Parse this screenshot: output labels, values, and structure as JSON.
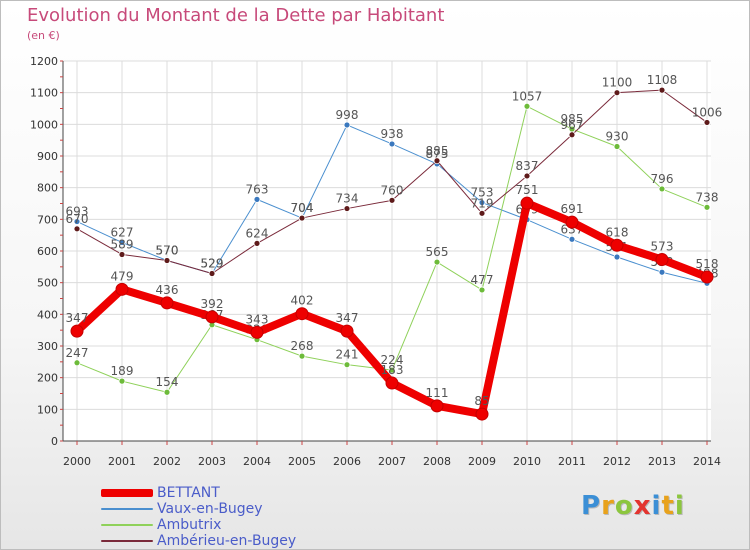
{
  "header": {
    "title": "Evolution du Montant de la Dette par Habitant",
    "subtitle": "(en €)"
  },
  "chart_data": {
    "type": "line",
    "x": [
      2000,
      2001,
      2002,
      2003,
      2004,
      2005,
      2006,
      2007,
      2008,
      2009,
      2010,
      2011,
      2012,
      2013,
      2014
    ],
    "ylim": [
      0,
      1200
    ],
    "yticks": [
      0,
      100,
      200,
      300,
      400,
      500,
      600,
      700,
      800,
      900,
      1000,
      1100,
      1200
    ],
    "grid": true,
    "legend": "bottom-left",
    "series": [
      {
        "name": "Vaux-en-Bugey",
        "color": "#4a8fcf",
        "marker": "#3a78be",
        "width": 1,
        "values": [
          693,
          627,
          570,
          529,
          763,
          704,
          998,
          938,
          875,
          753,
          699,
          637,
          581,
          533,
          498
        ],
        "labels": [
          "693",
          "627",
          "570",
          "529",
          "763",
          "704",
          "998",
          "938",
          "875",
          "753",
          "699",
          "637",
          "581",
          "533",
          "498"
        ]
      },
      {
        "name": "Ambutrix",
        "color": "#8fd15a",
        "marker": "#6dbb3a",
        "width": 1,
        "values": [
          247,
          189,
          154,
          367,
          320,
          268,
          241,
          224,
          565,
          477,
          1057,
          985,
          930,
          796,
          738
        ],
        "labels": [
          "247",
          "189",
          "154",
          "367",
          "320",
          "268",
          "241",
          "224",
          "565",
          "477",
          "1057",
          "985",
          "930",
          "796",
          "738"
        ]
      },
      {
        "name": "Ambérieu-en-Bugey",
        "color": "#7a2a3a",
        "marker": "#5e1a1a",
        "width": 1,
        "values": [
          670,
          589,
          570,
          529,
          624,
          704,
          734,
          760,
          885,
          719,
          837,
          967,
          1100,
          1108,
          1006
        ],
        "labels": [
          "670",
          "589",
          "570",
          "529",
          "624",
          "704",
          "734",
          "760",
          "885",
          "719",
          "837",
          "967",
          "1100",
          "1108",
          "1006"
        ]
      },
      {
        "name": "BETTANT",
        "color": "#ee0000",
        "marker": "#ee0000",
        "width": 8,
        "values": [
          347,
          479,
          436,
          392,
          343,
          402,
          347,
          183,
          111,
          85,
          751,
          691,
          618,
          573,
          518
        ],
        "labels": [
          "347",
          "479",
          "436",
          "392",
          "343",
          "402",
          "347",
          "183",
          "111",
          "85",
          "751",
          "691",
          "618",
          "573",
          "518"
        ]
      }
    ]
  },
  "legend": [
    {
      "label": "BETTANT",
      "color": "#ee0000",
      "thick": true
    },
    {
      "label": "Vaux-en-Bugey",
      "color": "#4a8fcf",
      "thick": false
    },
    {
      "label": "Ambutrix",
      "color": "#8fd15a",
      "thick": false
    },
    {
      "label": "Ambérieu-en-Bugey",
      "color": "#7a2a3a",
      "thick": false
    }
  ],
  "logo": {
    "letters": [
      "P",
      "r",
      "o",
      "x",
      "i",
      "t",
      "i"
    ],
    "colors": [
      "#3b8fd6",
      "#e8a21c",
      "#8cc63e",
      "#e3342f",
      "#3b8fd6",
      "#e8a21c",
      "#8cc63e"
    ]
  }
}
